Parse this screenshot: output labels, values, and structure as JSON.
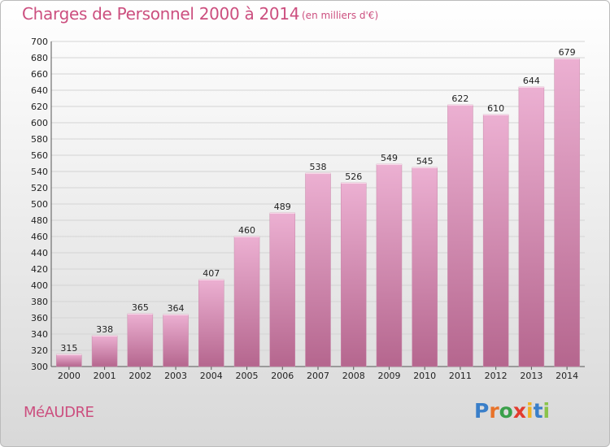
{
  "header": {
    "title": "Charges de Personnel 2000 à 2014",
    "subtitle": "(en milliers d'€)"
  },
  "footer": {
    "commune": "MéAUDRE",
    "logo": [
      "P",
      "r",
      "o",
      "x",
      "i",
      "t",
      "i"
    ],
    "logo_colors": [
      "#3a7fc9",
      "#e8732a",
      "#3aa04a",
      "#e23b2e",
      "#f0b323",
      "#3a7fc9",
      "#8bc34a"
    ]
  },
  "colors": {
    "bar_light": "#ecb0d2",
    "bar_dark": "#b5668e",
    "accent": "#cc4f7f"
  },
  "chart_data": {
    "type": "bar",
    "title": "Charges de Personnel 2000 à 2014",
    "subtitle": "(en milliers d'€)",
    "categories": [
      "2000",
      "2001",
      "2002",
      "2003",
      "2004",
      "2005",
      "2006",
      "2007",
      "2008",
      "2009",
      "2010",
      "2011",
      "2012",
      "2013",
      "2014"
    ],
    "values": [
      315,
      338,
      365,
      364,
      407,
      460,
      489,
      538,
      526,
      549,
      545,
      622,
      610,
      644,
      679
    ],
    "ylim": [
      300,
      700
    ],
    "yticks": [
      300,
      320,
      340,
      360,
      380,
      400,
      420,
      440,
      460,
      480,
      500,
      520,
      540,
      560,
      580,
      600,
      620,
      640,
      660,
      680,
      700
    ],
    "grid": true,
    "xlabel": "",
    "ylabel": ""
  }
}
